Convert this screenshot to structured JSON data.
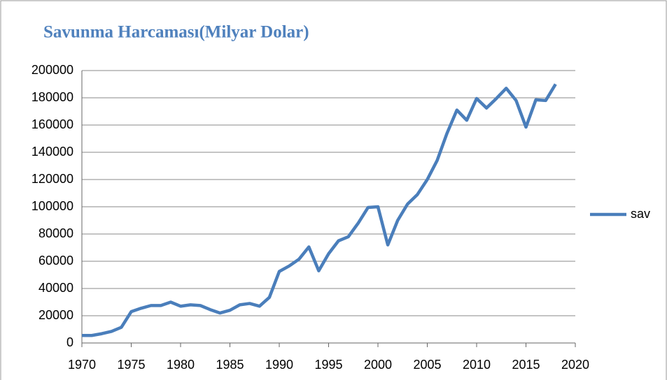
{
  "chart_data": {
    "type": "line",
    "title": "Savunma Harcaması(Milyar Dolar)",
    "x": [
      1970,
      1971,
      1972,
      1973,
      1974,
      1975,
      1976,
      1977,
      1978,
      1979,
      1980,
      1981,
      1982,
      1983,
      1984,
      1985,
      1986,
      1987,
      1988,
      1989,
      1990,
      1991,
      1992,
      1993,
      1994,
      1995,
      1996,
      1997,
      1998,
      1999,
      2000,
      2001,
      2002,
      2003,
      2004,
      2005,
      2006,
      2007,
      2008,
      2009,
      2010,
      2011,
      2012,
      2013,
      2014,
      2015,
      2016,
      2017,
      2018
    ],
    "series": [
      {
        "name": "sav",
        "color": "#4a7ebb",
        "values": [
          5500,
          5500,
          6800,
          8500,
          11500,
          23000,
          25500,
          27500,
          27500,
          30000,
          27000,
          28000,
          27500,
          24500,
          22000,
          24000,
          28000,
          29000,
          27000,
          33500,
          52500,
          56500,
          61500,
          70500,
          53000,
          65500,
          75000,
          78000,
          88000,
          99500,
          100000,
          72000,
          90000,
          102000,
          109000,
          120000,
          134000,
          154000,
          171000,
          163500,
          179500,
          172500,
          179500,
          187000,
          178000,
          158500,
          178500,
          178000,
          190000
        ]
      }
    ],
    "xlim": [
      1970,
      2020
    ],
    "xticks": [
      1970,
      1975,
      1980,
      1985,
      1990,
      1995,
      2000,
      2005,
      2010,
      2015,
      2020
    ],
    "ylim": [
      0,
      200000
    ],
    "yticks": [
      0,
      20000,
      40000,
      60000,
      80000,
      100000,
      120000,
      140000,
      160000,
      180000,
      200000
    ],
    "grid": true,
    "legend": "right"
  }
}
